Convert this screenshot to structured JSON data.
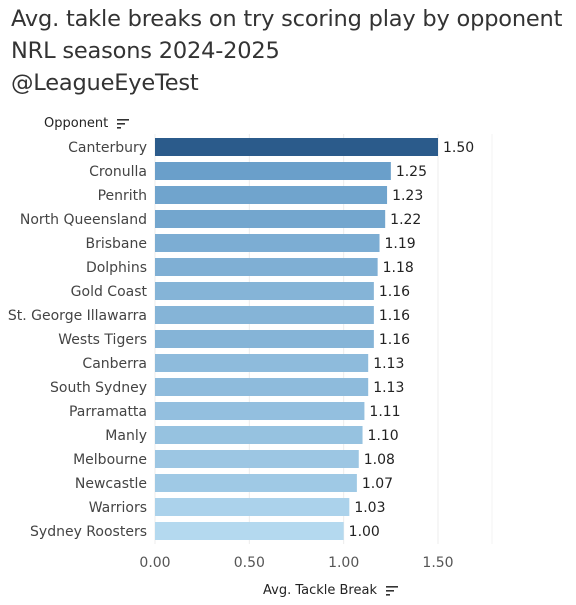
{
  "title_lines": [
    "Avg. takle breaks on try scoring play by opponent",
    "NRL seasons 2024-2025",
    "@LeagueEyeTest"
  ],
  "y_header": "Opponent",
  "x_header": "Avg. Tackle Break",
  "icons": {
    "y_sort": "sort-descending-icon",
    "x_sort": "sort-descending-icon"
  },
  "colors": {
    "bar_max": "#2b5b8b",
    "bar_light": "#b4d9ef",
    "bar_mid": "#6a9fca"
  },
  "chart_data": {
    "type": "bar",
    "orientation": "horizontal",
    "categories": [
      "Canterbury",
      "Cronulla",
      "Penrith",
      "North Queensland",
      "Brisbane",
      "Dolphins",
      "Gold Coast",
      "St. George Illawarra",
      "Wests Tigers",
      "Canberra",
      "South Sydney",
      "Parramatta",
      "Manly",
      "Melbourne",
      "Newcastle",
      "Warriors",
      "Sydney Roosters"
    ],
    "values": [
      1.5,
      1.25,
      1.23,
      1.22,
      1.19,
      1.18,
      1.16,
      1.16,
      1.16,
      1.13,
      1.13,
      1.11,
      1.1,
      1.08,
      1.07,
      1.03,
      1.0
    ],
    "value_labels": [
      "1.50",
      "1.25",
      "1.23",
      "1.22",
      "1.19",
      "1.18",
      "1.16",
      "1.16",
      "1.16",
      "1.13",
      "1.13",
      "1.11",
      "1.10",
      "1.08",
      "1.07",
      "1.03",
      "1.00"
    ],
    "xlabel": "Avg. Tackle Break",
    "ylabel": "Opponent",
    "xlim": [
      0,
      1.5
    ],
    "xticks": [
      0,
      0.5,
      1.0,
      1.5
    ],
    "xtick_labels": [
      "0.00",
      "0.50",
      "1.00",
      "1.50"
    ],
    "grid": true,
    "legend": "none"
  }
}
